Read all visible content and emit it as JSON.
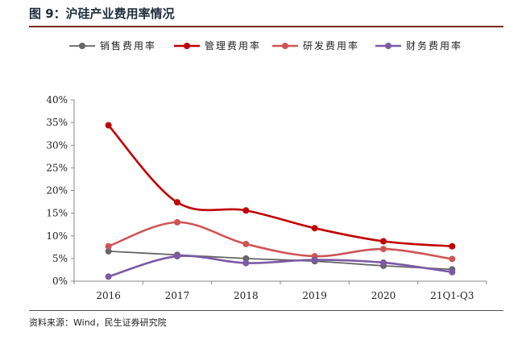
{
  "header": {
    "title": "图 9：沪硅产业费用率情况"
  },
  "footer": {
    "source": "资料来源：Wind，民生证券研究院"
  },
  "chart_data": {
    "type": "line",
    "title": "",
    "xlabel": "",
    "ylabel": "",
    "categories": [
      "2016",
      "2017",
      "2018",
      "2019",
      "2020",
      "21Q1-Q3"
    ],
    "y_ticks": [
      "0%",
      "5%",
      "10%",
      "15%",
      "20%",
      "25%",
      "30%",
      "35%",
      "40%"
    ],
    "ylim": [
      0,
      40
    ],
    "legend_position": "top",
    "grid": false,
    "smooth": true,
    "series": [
      {
        "name": "销售费用率",
        "color": "#666666",
        "values": [
          6.6,
          5.8,
          5.0,
          4.4,
          3.4,
          2.6
        ]
      },
      {
        "name": "管理费用率",
        "color": "#c00000",
        "values": [
          34.4,
          17.4,
          15.6,
          11.7,
          8.8,
          7.7
        ]
      },
      {
        "name": "研发费用率",
        "color": "#cd5555",
        "values": [
          7.7,
          13.0,
          8.2,
          5.5,
          7.1,
          4.9
        ]
      },
      {
        "name": "财务费用率",
        "color": "#7b5aa6",
        "values": [
          1.0,
          5.5,
          4.0,
          4.7,
          4.1,
          2.0
        ]
      }
    ]
  }
}
